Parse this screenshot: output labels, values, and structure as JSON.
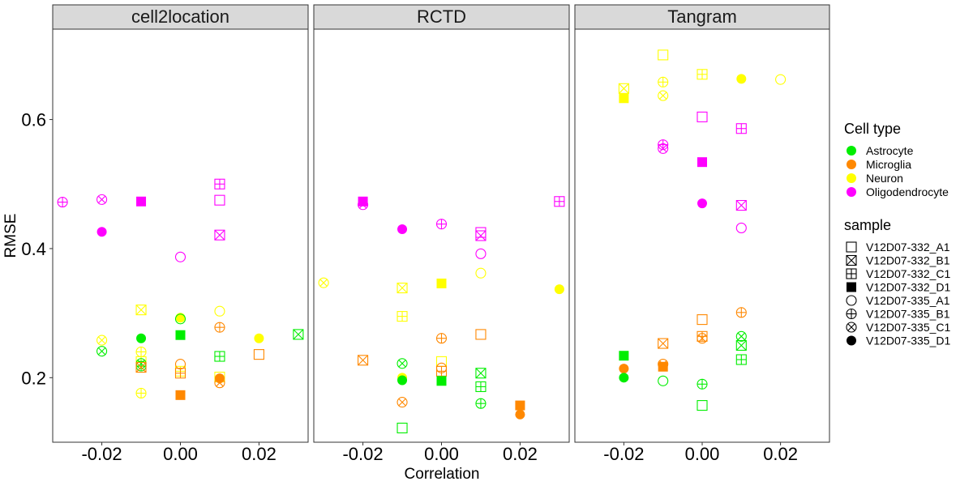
{
  "chart_data": {
    "type": "scatter",
    "facets": [
      "cell2location",
      "RCTD",
      "Tangram"
    ],
    "xlabel": "Correlation",
    "ylabel": "RMSE",
    "xlim": [
      -0.0325,
      0.0325
    ],
    "ylim": [
      0.1,
      0.74
    ],
    "x_ticks": [
      -0.02,
      0.0,
      0.02
    ],
    "x_tick_labels": [
      "-0.02",
      "0.00",
      "0.02"
    ],
    "y_ticks": [
      0.2,
      0.4,
      0.6
    ],
    "y_tick_labels": [
      "0.2",
      "0.4",
      "0.6"
    ],
    "legend_color": {
      "title": "Cell type",
      "entries": [
        {
          "label": "Astrocyte",
          "color": "#00ee00"
        },
        {
          "label": "Microglia",
          "color": "#ff8800"
        },
        {
          "label": "Neuron",
          "color": "#ffff00"
        },
        {
          "label": "Oligodendrocyte",
          "color": "#ff00ff"
        }
      ]
    },
    "legend_shape": {
      "title": "sample",
      "entries": [
        {
          "label": "V12D07-332_A1",
          "shape": "square-open"
        },
        {
          "label": "V12D07-332_B1",
          "shape": "square-cross"
        },
        {
          "label": "V12D07-332_C1",
          "shape": "square-plus"
        },
        {
          "label": "V12D07-332_D1",
          "shape": "square-filled"
        },
        {
          "label": "V12D07-335_A1",
          "shape": "circle-open"
        },
        {
          "label": "V12D07-335_B1",
          "shape": "circle-plus"
        },
        {
          "label": "V12D07-335_C1",
          "shape": "circle-cross"
        },
        {
          "label": "V12D07-335_D1",
          "shape": "circle-filled"
        }
      ]
    },
    "legend_placement": "right",
    "grid": false,
    "points": {
      "cell2location": [
        {
          "x": -0.03,
          "y": 0.472,
          "cell": "Oligodendrocyte",
          "sample": "V12D07-335_B1"
        },
        {
          "x": -0.02,
          "y": 0.476,
          "cell": "Oligodendrocyte",
          "sample": "V12D07-335_C1"
        },
        {
          "x": -0.01,
          "y": 0.473,
          "cell": "Oligodendrocyte",
          "sample": "V12D07-332_D1"
        },
        {
          "x": 0.01,
          "y": 0.5,
          "cell": "Oligodendrocyte",
          "sample": "V12D07-332_C1"
        },
        {
          "x": 0.01,
          "y": 0.475,
          "cell": "Oligodendrocyte",
          "sample": "V12D07-332_A1"
        },
        {
          "x": -0.02,
          "y": 0.426,
          "cell": "Oligodendrocyte",
          "sample": "V12D07-335_D1"
        },
        {
          "x": 0.01,
          "y": 0.421,
          "cell": "Oligodendrocyte",
          "sample": "V12D07-332_B1"
        },
        {
          "x": 0.0,
          "y": 0.387,
          "cell": "Oligodendrocyte",
          "sample": "V12D07-335_A1"
        },
        {
          "x": -0.01,
          "y": 0.305,
          "cell": "Neuron",
          "sample": "V12D07-332_B1"
        },
        {
          "x": 0.0,
          "y": 0.293,
          "cell": "Neuron",
          "sample": "V12D07-335_D1"
        },
        {
          "x": 0.01,
          "y": 0.303,
          "cell": "Neuron",
          "sample": "V12D07-335_A1"
        },
        {
          "x": 0.02,
          "y": 0.261,
          "cell": "Neuron",
          "sample": "V12D07-335_D1"
        },
        {
          "x": -0.02,
          "y": 0.258,
          "cell": "Neuron",
          "sample": "V12D07-335_C1"
        },
        {
          "x": -0.01,
          "y": 0.24,
          "cell": "Neuron",
          "sample": "V12D07-335_B1"
        },
        {
          "x": -0.01,
          "y": 0.225,
          "cell": "Neuron",
          "sample": "V12D07-332_C1"
        },
        {
          "x": -0.01,
          "y": 0.176,
          "cell": "Neuron",
          "sample": "V12D07-335_B1"
        },
        {
          "x": 0.0,
          "y": 0.21,
          "cell": "Neuron",
          "sample": "V12D07-332_C1"
        },
        {
          "x": 0.01,
          "y": 0.201,
          "cell": "Neuron",
          "sample": "V12D07-332_A1"
        },
        {
          "x": -0.01,
          "y": 0.261,
          "cell": "Astrocyte",
          "sample": "V12D07-335_D1"
        },
        {
          "x": 0.0,
          "y": 0.266,
          "cell": "Astrocyte",
          "sample": "V12D07-332_D1"
        },
        {
          "x": 0.0,
          "y": 0.291,
          "cell": "Astrocyte",
          "sample": "V12D07-335_A1"
        },
        {
          "x": 0.03,
          "y": 0.267,
          "cell": "Astrocyte",
          "sample": "V12D07-332_B1"
        },
        {
          "x": -0.02,
          "y": 0.241,
          "cell": "Astrocyte",
          "sample": "V12D07-335_C1"
        },
        {
          "x": 0.01,
          "y": 0.233,
          "cell": "Astrocyte",
          "sample": "V12D07-332_C1"
        },
        {
          "x": -0.01,
          "y": 0.222,
          "cell": "Astrocyte",
          "sample": "V12D07-335_C1"
        },
        {
          "x": -0.01,
          "y": 0.218,
          "cell": "Astrocyte",
          "sample": "V12D07-335_B1"
        },
        {
          "x": 0.01,
          "y": 0.278,
          "cell": "Microglia",
          "sample": "V12D07-335_B1"
        },
        {
          "x": 0.02,
          "y": 0.236,
          "cell": "Microglia",
          "sample": "V12D07-332_A1"
        },
        {
          "x": 0.0,
          "y": 0.221,
          "cell": "Microglia",
          "sample": "V12D07-335_A1"
        },
        {
          "x": -0.01,
          "y": 0.216,
          "cell": "Microglia",
          "sample": "V12D07-332_B1"
        },
        {
          "x": 0.0,
          "y": 0.207,
          "cell": "Microglia",
          "sample": "V12D07-332_C1"
        },
        {
          "x": 0.01,
          "y": 0.199,
          "cell": "Microglia",
          "sample": "V12D07-335_D1"
        },
        {
          "x": 0.01,
          "y": 0.192,
          "cell": "Microglia",
          "sample": "V12D07-335_C1"
        },
        {
          "x": 0.0,
          "y": 0.173,
          "cell": "Microglia",
          "sample": "V12D07-332_D1"
        }
      ],
      "RCTD": [
        {
          "x": -0.02,
          "y": 0.473,
          "cell": "Oligodendrocyte",
          "sample": "V12D07-332_D1"
        },
        {
          "x": -0.02,
          "y": 0.468,
          "cell": "Oligodendrocyte",
          "sample": "V12D07-335_C1"
        },
        {
          "x": 0.03,
          "y": 0.473,
          "cell": "Oligodendrocyte",
          "sample": "V12D07-332_C1"
        },
        {
          "x": 0.0,
          "y": 0.438,
          "cell": "Oligodendrocyte",
          "sample": "V12D07-335_B1"
        },
        {
          "x": -0.01,
          "y": 0.43,
          "cell": "Oligodendrocyte",
          "sample": "V12D07-335_D1"
        },
        {
          "x": 0.01,
          "y": 0.425,
          "cell": "Oligodendrocyte",
          "sample": "V12D07-332_A1"
        },
        {
          "x": 0.01,
          "y": 0.42,
          "cell": "Oligodendrocyte",
          "sample": "V12D07-332_B1"
        },
        {
          "x": 0.01,
          "y": 0.392,
          "cell": "Oligodendrocyte",
          "sample": "V12D07-335_A1"
        },
        {
          "x": -0.03,
          "y": 0.347,
          "cell": "Neuron",
          "sample": "V12D07-335_C1"
        },
        {
          "x": 0.0,
          "y": 0.346,
          "cell": "Neuron",
          "sample": "V12D07-332_D1"
        },
        {
          "x": -0.01,
          "y": 0.339,
          "cell": "Neuron",
          "sample": "V12D07-332_B1"
        },
        {
          "x": 0.03,
          "y": 0.337,
          "cell": "Neuron",
          "sample": "V12D07-335_D1"
        },
        {
          "x": 0.01,
          "y": 0.362,
          "cell": "Neuron",
          "sample": "V12D07-335_A1"
        },
        {
          "x": -0.01,
          "y": 0.295,
          "cell": "Neuron",
          "sample": "V12D07-332_C1"
        },
        {
          "x": 0.0,
          "y": 0.225,
          "cell": "Neuron",
          "sample": "V12D07-332_A1"
        },
        {
          "x": -0.01,
          "y": 0.2,
          "cell": "Neuron",
          "sample": "V12D07-335_D1"
        },
        {
          "x": 0.01,
          "y": 0.267,
          "cell": "Microglia",
          "sample": "V12D07-332_A1"
        },
        {
          "x": 0.0,
          "y": 0.261,
          "cell": "Microglia",
          "sample": "V12D07-335_B1"
        },
        {
          "x": -0.02,
          "y": 0.227,
          "cell": "Microglia",
          "sample": "V12D07-332_B1"
        },
        {
          "x": 0.0,
          "y": 0.215,
          "cell": "Microglia",
          "sample": "V12D07-335_A1"
        },
        {
          "x": 0.0,
          "y": 0.21,
          "cell": "Microglia",
          "sample": "V12D07-332_C1"
        },
        {
          "x": -0.01,
          "y": 0.162,
          "cell": "Microglia",
          "sample": "V12D07-335_C1"
        },
        {
          "x": 0.02,
          "y": 0.157,
          "cell": "Microglia",
          "sample": "V12D07-332_D1"
        },
        {
          "x": 0.02,
          "y": 0.143,
          "cell": "Microglia",
          "sample": "V12D07-335_D1"
        },
        {
          "x": -0.01,
          "y": 0.222,
          "cell": "Astrocyte",
          "sample": "V12D07-335_C1"
        },
        {
          "x": 0.01,
          "y": 0.207,
          "cell": "Astrocyte",
          "sample": "V12D07-332_B1"
        },
        {
          "x": -0.01,
          "y": 0.196,
          "cell": "Astrocyte",
          "sample": "V12D07-335_D1"
        },
        {
          "x": 0.0,
          "y": 0.195,
          "cell": "Astrocyte",
          "sample": "V12D07-332_D1"
        },
        {
          "x": 0.01,
          "y": 0.186,
          "cell": "Astrocyte",
          "sample": "V12D07-332_C1"
        },
        {
          "x": 0.01,
          "y": 0.16,
          "cell": "Astrocyte",
          "sample": "V12D07-335_B1"
        },
        {
          "x": -0.01,
          "y": 0.122,
          "cell": "Astrocyte",
          "sample": "V12D07-332_A1"
        }
      ],
      "Tangram": [
        {
          "x": -0.01,
          "y": 0.7,
          "cell": "Neuron",
          "sample": "V12D07-332_A1"
        },
        {
          "x": -0.01,
          "y": 0.658,
          "cell": "Neuron",
          "sample": "V12D07-335_B1"
        },
        {
          "x": -0.02,
          "y": 0.648,
          "cell": "Neuron",
          "sample": "V12D07-332_B1"
        },
        {
          "x": -0.01,
          "y": 0.637,
          "cell": "Neuron",
          "sample": "V12D07-335_C1"
        },
        {
          "x": -0.02,
          "y": 0.633,
          "cell": "Neuron",
          "sample": "V12D07-332_D1"
        },
        {
          "x": 0.0,
          "y": 0.67,
          "cell": "Neuron",
          "sample": "V12D07-332_C1"
        },
        {
          "x": 0.01,
          "y": 0.663,
          "cell": "Neuron",
          "sample": "V12D07-335_D1"
        },
        {
          "x": 0.02,
          "y": 0.662,
          "cell": "Neuron",
          "sample": "V12D07-335_A1"
        },
        {
          "x": 0.0,
          "y": 0.604,
          "cell": "Oligodendrocyte",
          "sample": "V12D07-332_A1"
        },
        {
          "x": 0.01,
          "y": 0.586,
          "cell": "Oligodendrocyte",
          "sample": "V12D07-332_C1"
        },
        {
          "x": -0.01,
          "y": 0.561,
          "cell": "Oligodendrocyte",
          "sample": "V12D07-335_B1"
        },
        {
          "x": -0.01,
          "y": 0.555,
          "cell": "Oligodendrocyte",
          "sample": "V12D07-335_C1"
        },
        {
          "x": 0.0,
          "y": 0.534,
          "cell": "Oligodendrocyte",
          "sample": "V12D07-332_D1"
        },
        {
          "x": 0.0,
          "y": 0.47,
          "cell": "Oligodendrocyte",
          "sample": "V12D07-335_D1"
        },
        {
          "x": 0.01,
          "y": 0.467,
          "cell": "Oligodendrocyte",
          "sample": "V12D07-332_B1"
        },
        {
          "x": 0.01,
          "y": 0.432,
          "cell": "Oligodendrocyte",
          "sample": "V12D07-335_A1"
        },
        {
          "x": 0.01,
          "y": 0.301,
          "cell": "Microglia",
          "sample": "V12D07-335_B1"
        },
        {
          "x": 0.0,
          "y": 0.29,
          "cell": "Microglia",
          "sample": "V12D07-332_A1"
        },
        {
          "x": 0.0,
          "y": 0.264,
          "cell": "Microglia",
          "sample": "V12D07-332_C1"
        },
        {
          "x": 0.0,
          "y": 0.261,
          "cell": "Microglia",
          "sample": "V12D07-335_C1"
        },
        {
          "x": -0.01,
          "y": 0.253,
          "cell": "Microglia",
          "sample": "V12D07-332_B1"
        },
        {
          "x": -0.01,
          "y": 0.221,
          "cell": "Microglia",
          "sample": "V12D07-335_C1"
        },
        {
          "x": -0.01,
          "y": 0.217,
          "cell": "Microglia",
          "sample": "V12D07-332_D1"
        },
        {
          "x": -0.02,
          "y": 0.214,
          "cell": "Microglia",
          "sample": "V12D07-335_D1"
        },
        {
          "x": 0.01,
          "y": 0.264,
          "cell": "Astrocyte",
          "sample": "V12D07-335_C1"
        },
        {
          "x": 0.01,
          "y": 0.25,
          "cell": "Astrocyte",
          "sample": "V12D07-332_B1"
        },
        {
          "x": 0.01,
          "y": 0.228,
          "cell": "Astrocyte",
          "sample": "V12D07-332_C1"
        },
        {
          "x": -0.02,
          "y": 0.234,
          "cell": "Astrocyte",
          "sample": "V12D07-332_D1"
        },
        {
          "x": -0.02,
          "y": 0.2,
          "cell": "Astrocyte",
          "sample": "V12D07-335_D1"
        },
        {
          "x": -0.01,
          "y": 0.195,
          "cell": "Astrocyte",
          "sample": "V12D07-335_A1"
        },
        {
          "x": 0.0,
          "y": 0.19,
          "cell": "Astrocyte",
          "sample": "V12D07-335_B1"
        },
        {
          "x": 0.0,
          "y": 0.157,
          "cell": "Astrocyte",
          "sample": "V12D07-332_A1"
        }
      ]
    }
  }
}
